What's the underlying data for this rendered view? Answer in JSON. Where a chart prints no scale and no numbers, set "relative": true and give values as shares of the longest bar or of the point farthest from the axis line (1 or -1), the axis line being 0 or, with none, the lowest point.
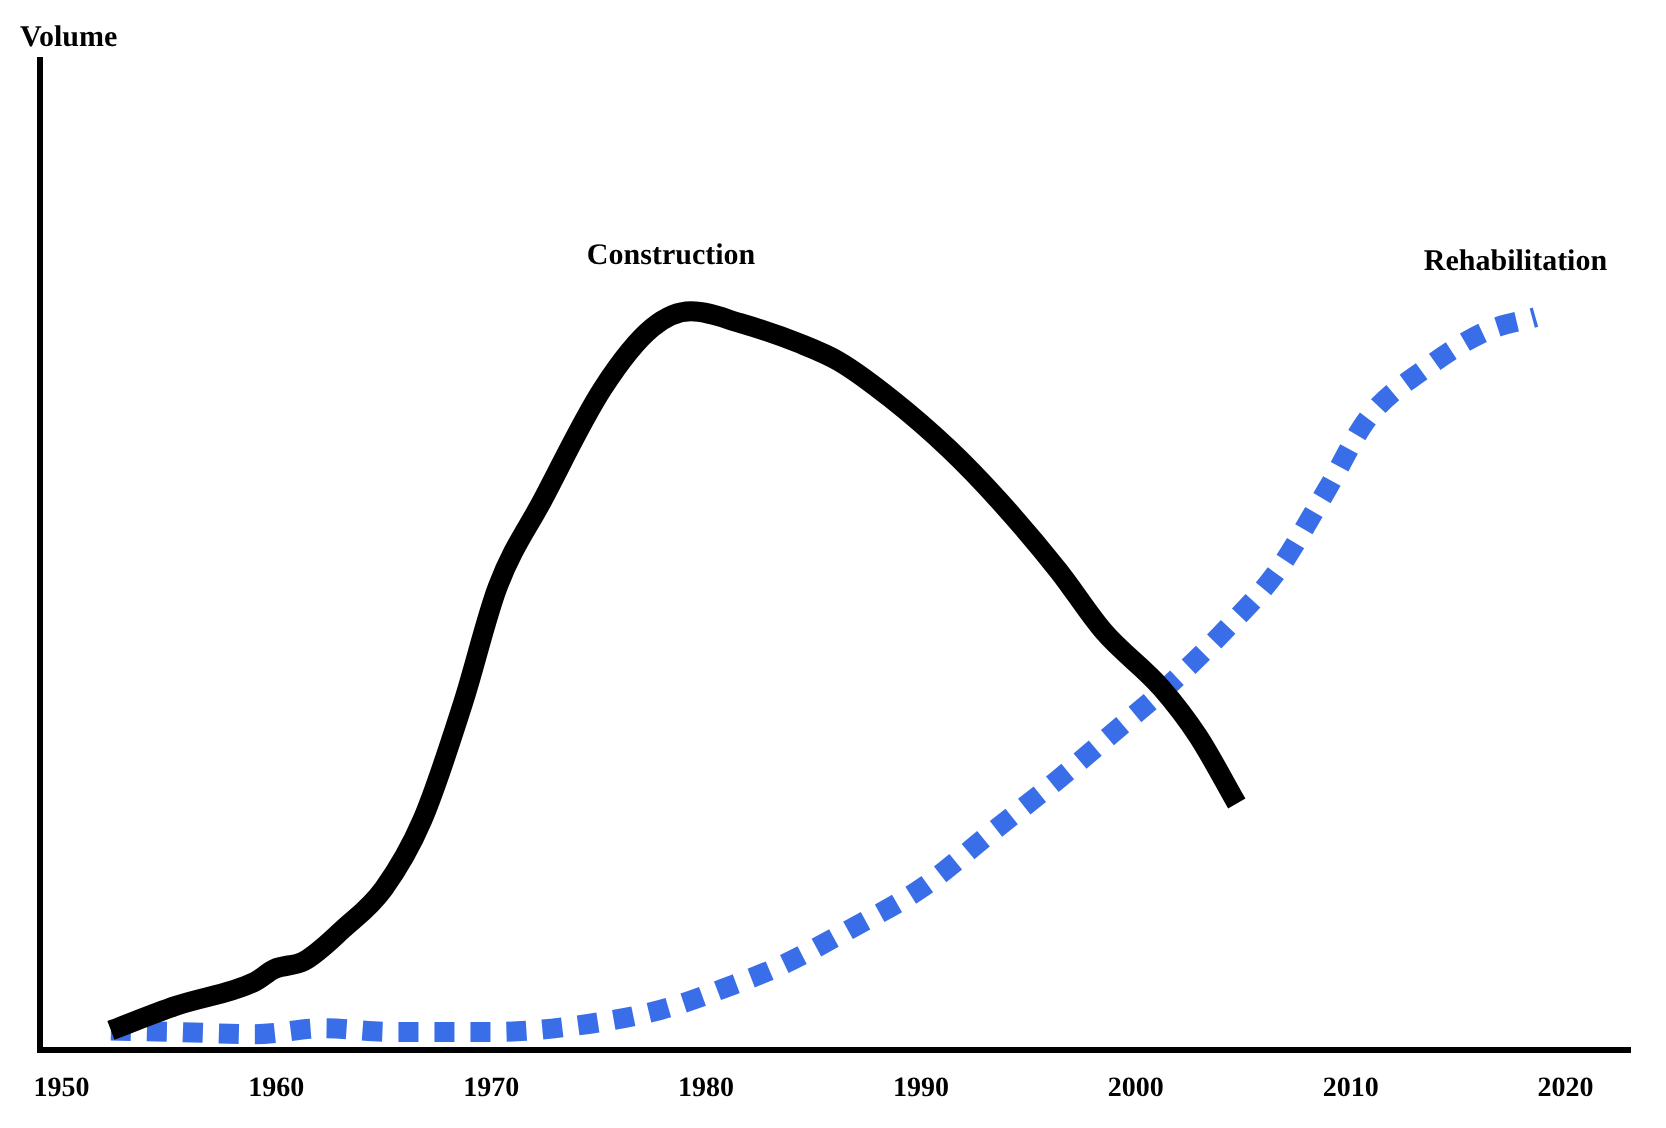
{
  "chart_data": {
    "type": "line",
    "annotations": [
      "Volume"
    ],
    "relative": true,
    "xlim": [
      1949,
      2023
    ],
    "xticks": [
      1950,
      1960,
      1970,
      1980,
      1990,
      2000,
      2010,
      2020
    ],
    "grid": false,
    "legend": false,
    "marker": "none",
    "series": [
      {
        "name": "Construction",
        "color": "#000000",
        "line_style": "solid",
        "x": [
          1952.3,
          1955.3,
          1959.0,
          1959.9,
          1961.3,
          1963.1,
          1965.0,
          1966.8,
          1968.7,
          1970.3,
          1972.4,
          1975.2,
          1977.5,
          1979.3,
          1981.6,
          1984.4,
          1986.2,
          1988.6,
          1991.3,
          1993.6,
          1996.4,
          1998.5,
          2001.2,
          2002.9,
          2004.7
        ],
        "values": [
          0.027,
          0.06,
          0.093,
          0.11,
          0.121,
          0.164,
          0.219,
          0.312,
          0.471,
          0.627,
          0.745,
          0.896,
          0.978,
          1,
          0.984,
          0.956,
          0.932,
          0.882,
          0.814,
          0.745,
          0.649,
          0.567,
          0.49,
          0.425,
          0.334
        ]
      },
      {
        "name": "Rehabilitation",
        "color": "#3a6ee8",
        "line_style": "dotted",
        "x": [
          1952.3,
          1955.3,
          1959.0,
          1962.2,
          1965.4,
          1970.1,
          1973.8,
          1977.9,
          1981.2,
          1983.5,
          1986.7,
          1990.0,
          1993.2,
          1996.4,
          1999.2,
          2001.5,
          2004.3,
          2006.6,
          2008.9,
          2010.8,
          2013.5,
          2016.3,
          2018.6
        ],
        "values": [
          0.027,
          0.025,
          0.022,
          0.03,
          0.025,
          0.025,
          0.033,
          0.055,
          0.088,
          0.115,
          0.164,
          0.219,
          0.293,
          0.367,
          0.436,
          0.493,
          0.573,
          0.649,
          0.759,
          0.855,
          0.923,
          0.973,
          0.992
        ]
      }
    ]
  }
}
